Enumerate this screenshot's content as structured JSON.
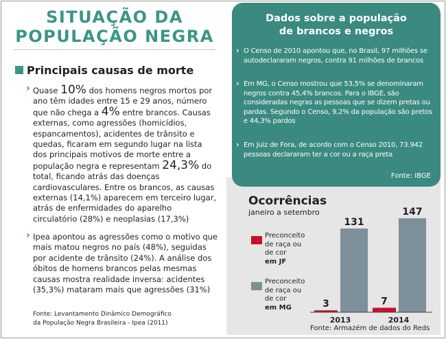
{
  "title": {
    "line1": "SITUAÇÃO DA",
    "line2": "POPULAÇÃO NEGRA"
  },
  "left_section": {
    "heading": "Principais causas de morte",
    "paragraph1": {
      "p1": "Quase ",
      "b1": "10%",
      "p2": " dos homens negros mortos por ano têm idades entre 15 e 29 anos, número que não chega a ",
      "b2": "4%",
      "p3": " entre brancos. Causas externas, como agressões (homicídios, espancamentos), acidentes de trânsito e quedas, ficaram em segundo lugar na lista dos principais motivos de morte entre a população negra e representam ",
      "b3": "24,3%",
      "p4": " do total, ficando atrás das doenças cardiovasculares. Entre os brancos, as causas externas (14,1%) aparecem em terceiro lugar, atrás de enfermidades do aparelho circulatório (28%) e neoplasias (17,3%)"
    },
    "paragraph2": "Ipea apontou as agressões como o motivo que mais matou negros no país (48%), seguidas por acidente de trânsito (24%). A análise dos óbitos de homens brancos pelas mesmas causas mostra realidade inversa: acidentes (35,3%) mataram mais que agressões (31%)",
    "source_line1": "Fonte: Levantamento Dinâmico Demográfico",
    "source_line2": "da População Negra Brasileira - Ipea (2011)"
  },
  "info_panel": {
    "title_line1": "Dados sobre a população",
    "title_line2": "de brancos e negros",
    "bullets": [
      "O Censo de 2010 apontou que, no Brasil, 97 milhões se autodeclararam negros, contra 91 milhões de brancos",
      "Em MG, o Censo mostrou que 53,5% se denominaram negros contra 45,4% brancos. Para o IBGE, são consideradas negras as pessoas que se dizem pretas ou pardas. Segundo o Censo, 9,2% da população são pretos e 44,3% pardos",
      "Em Juiz de Fora, de acordo com o Censo 2010, 73.942 pessoas declararam ter a cor ou a raça preta"
    ],
    "source": "Fonte: IBGE"
  },
  "chart_data": {
    "type": "bar",
    "title": "Ocorrências",
    "subtitle": "janeiro a setembro",
    "categories": [
      "2013",
      "2014"
    ],
    "series": [
      {
        "name": "Preconceito de raça ou de cor em JF",
        "legend_main": "Preconceito de raça ou de cor",
        "legend_bold": "em JF",
        "color": "#c8102e",
        "values": [
          3,
          7
        ]
      },
      {
        "name": "Preconceito de raça ou de cor em MG",
        "legend_main": "Preconceito de raça ou de cor",
        "legend_bold": "em MG",
        "color": "#7d8f99",
        "values": [
          131,
          147
        ]
      }
    ],
    "ylim": [
      0,
      160
    ],
    "xlabel": "",
    "ylabel": "",
    "source": "Fonte: Armazém de dados do Reds"
  },
  "colors": {
    "teal": "#3b8a80",
    "title_teal": "#3b9587",
    "red": "#c8102e",
    "gray_bar": "#7d8f99"
  }
}
